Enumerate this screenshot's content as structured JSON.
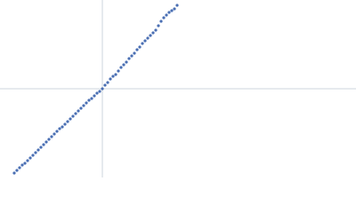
{
  "chart_data": {
    "type": "scatter",
    "color": "#4a6fb3",
    "axis_color": "#cdd5de",
    "xlim": [
      -115,
      285
    ],
    "ylim": [
      -100,
      100
    ],
    "zero_lines": true,
    "series": [
      {
        "color": "#4a6fb3",
        "x": [
          -99,
          -96,
          -93,
          -90,
          -87,
          -84,
          -81,
          -78,
          -75,
          -72,
          -69,
          -66,
          -63,
          -60,
          -57,
          -54,
          -51,
          -48,
          -45,
          -42,
          -39,
          -36,
          -33,
          -30,
          -27,
          -24,
          -21,
          -18,
          -15,
          -12,
          -9,
          -6,
          -3,
          0,
          3,
          6,
          9,
          12,
          15,
          18,
          21,
          24,
          27,
          30,
          33,
          36,
          39,
          42,
          45,
          48,
          51,
          54,
          57,
          60,
          63,
          66,
          69,
          72,
          75,
          78,
          81,
          84
        ],
        "values": [
          -95,
          -92,
          -89,
          -86,
          -84,
          -81,
          -78,
          -75,
          -72,
          -69,
          -66,
          -63,
          -60,
          -57,
          -54,
          -51,
          -48,
          -45,
          -43,
          -40,
          -37,
          -34,
          -31,
          -28,
          -25,
          -22,
          -19,
          -16,
          -13,
          -11,
          -8,
          -5,
          -3,
          0,
          4,
          7,
          11,
          14,
          16,
          20,
          24,
          27,
          30,
          34,
          37,
          40,
          44,
          47,
          51,
          54,
          57,
          60,
          63,
          66,
          71,
          76,
          80,
          83,
          86,
          88,
          90,
          94
        ]
      }
    ]
  }
}
